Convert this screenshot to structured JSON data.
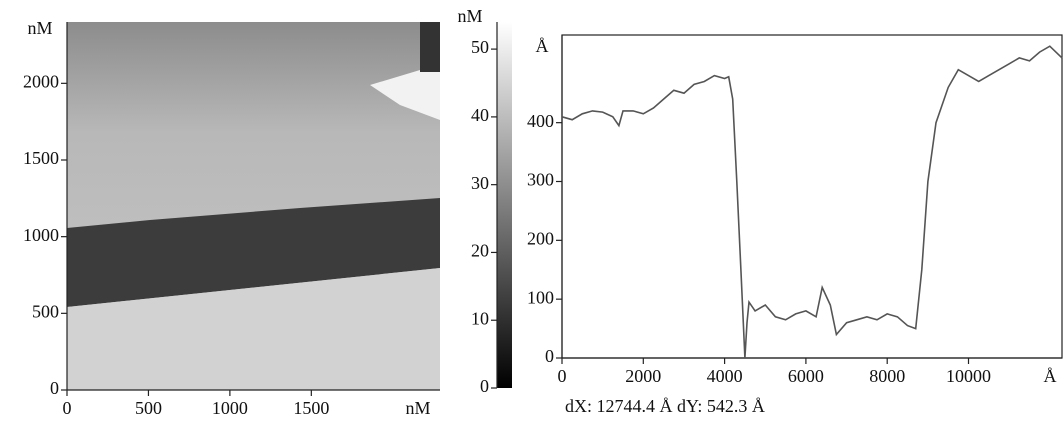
{
  "chart_data": [
    {
      "type": "image",
      "x_label": "nM",
      "y_label": "nM",
      "xlim": [
        0,
        2290
      ],
      "ylim": [
        0,
        2400
      ],
      "xticks": [
        0,
        500,
        1000,
        1500
      ],
      "yticks": [
        0,
        500,
        1000,
        1500,
        2000
      ]
    },
    {
      "type": "colorbar",
      "label": "nM",
      "ylim": [
        0,
        54
      ],
      "yticks": [
        0,
        10,
        20,
        30,
        40,
        50
      ]
    },
    {
      "type": "line",
      "x_label": "Å",
      "y_label": "Å",
      "xlim": [
        0,
        12300
      ],
      "ylim": [
        0,
        549
      ],
      "xticks": [
        0,
        2000,
        4000,
        6000,
        8000,
        10000
      ],
      "yticks": [
        0,
        100,
        200,
        300,
        400
      ],
      "color": "#555555",
      "x": [
        0,
        250,
        500,
        750,
        1000,
        1250,
        1400,
        1500,
        1750,
        2000,
        2250,
        2500,
        2750,
        3000,
        3250,
        3500,
        3750,
        4000,
        4100,
        4200,
        4300,
        4400,
        4500,
        4550,
        4600,
        4750,
        5000,
        5250,
        5500,
        5750,
        6000,
        6250,
        6400,
        6600,
        6750,
        7000,
        7250,
        7500,
        7750,
        8000,
        8250,
        8500,
        8700,
        8850,
        9000,
        9200,
        9500,
        9750,
        10000,
        10250,
        10500,
        10750,
        11000,
        11250,
        11500,
        11750,
        12000,
        12150,
        12300
      ],
      "values": [
        410,
        405,
        415,
        420,
        418,
        410,
        395,
        420,
        420,
        415,
        425,
        440,
        455,
        450,
        465,
        470,
        480,
        475,
        478,
        440,
        300,
        150,
        0,
        60,
        95,
        80,
        90,
        70,
        65,
        75,
        80,
        70,
        120,
        90,
        40,
        60,
        65,
        70,
        65,
        75,
        70,
        55,
        50,
        150,
        300,
        400,
        460,
        490,
        480,
        470,
        480,
        490,
        500,
        510,
        505,
        520,
        530,
        520,
        510
      ],
      "footnote": "dX: 12744.4 Å  dY: 542.3 Å"
    }
  ]
}
